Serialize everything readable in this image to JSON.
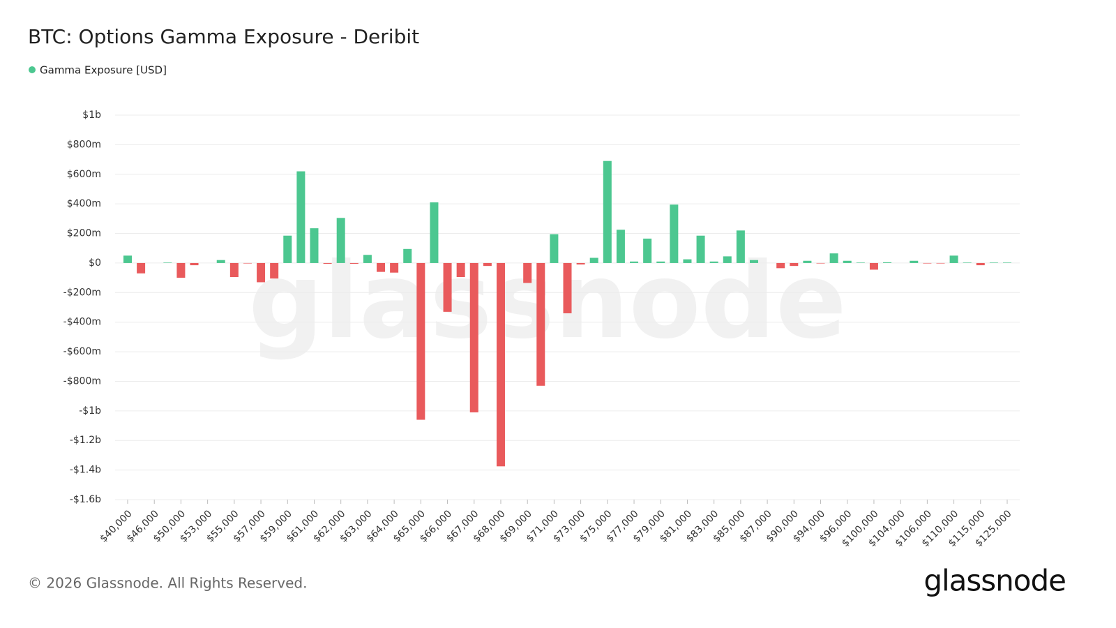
{
  "chart_data": {
    "type": "bar",
    "title": "BTC: Options Gamma Exposure - Deribit",
    "categories": [
      "$40,000",
      null,
      "$46,000",
      null,
      "$50,000",
      null,
      "$53,000",
      null,
      "$55,000",
      null,
      "$57,000",
      null,
      "$59,000",
      null,
      "$61,000",
      null,
      "$62,000",
      null,
      "$63,000",
      null,
      "$64,000",
      null,
      "$65,000",
      null,
      "$66,000",
      null,
      "$67,000",
      null,
      "$68,000",
      null,
      "$69,000",
      null,
      "$71,000",
      null,
      "$73,000",
      null,
      "$75,000",
      null,
      "$77,000",
      null,
      "$79,000",
      null,
      "$81,000",
      null,
      "$83,000",
      null,
      "$85,000",
      null,
      "$87,000",
      null,
      "$90,000",
      null,
      "$94,000",
      null,
      "$96,000",
      null,
      "$100,000",
      null,
      "$104,000",
      null,
      "$106,000",
      null,
      "$110,000",
      null,
      "$115,000",
      null,
      "$125,000"
    ],
    "series": [
      {
        "name": "Gamma Exposure [USD]",
        "color": "#4cc790",
        "negative_color": "#e95a5c",
        "values": [
          50000000,
          -70000000,
          0,
          3000000,
          -100000000,
          -15000000,
          0,
          20000000,
          -95000000,
          -3000000,
          -130000000,
          -105000000,
          185000000,
          620000000,
          235000000,
          -5000000,
          305000000,
          -5000000,
          55000000,
          -60000000,
          -65000000,
          95000000,
          -1060000000,
          410000000,
          -330000000,
          -95000000,
          -1010000000,
          -20000000,
          -1375000000,
          0,
          -135000000,
          -830000000,
          195000000,
          -340000000,
          -10000000,
          35000000,
          690000000,
          225000000,
          10000000,
          165000000,
          10000000,
          395000000,
          25000000,
          185000000,
          10000000,
          45000000,
          220000000,
          20000000,
          0,
          -35000000,
          -20000000,
          15000000,
          -3000000,
          65000000,
          15000000,
          3000000,
          -45000000,
          5000000,
          0,
          15000000,
          -3000000,
          -3000000,
          50000000,
          3000000,
          -15000000,
          3000000,
          3000000
        ]
      }
    ],
    "ylim": [
      -1600000000,
      1000000000
    ],
    "yticks": [
      {
        "value": 1000000000,
        "label": "$1b"
      },
      {
        "value": 800000000,
        "label": "$800m"
      },
      {
        "value": 600000000,
        "label": "$600m"
      },
      {
        "value": 400000000,
        "label": "$400m"
      },
      {
        "value": 200000000,
        "label": "$200m"
      },
      {
        "value": 0,
        "label": "$0"
      },
      {
        "value": -200000000,
        "label": "-$200m"
      },
      {
        "value": -400000000,
        "label": "-$400m"
      },
      {
        "value": -600000000,
        "label": "-$600m"
      },
      {
        "value": -800000000,
        "label": "-$800m"
      },
      {
        "value": -1000000000,
        "label": "-$1b"
      },
      {
        "value": -1200000000,
        "label": "-$1.2b"
      },
      {
        "value": -1400000000,
        "label": "-$1.4b"
      },
      {
        "value": -1600000000,
        "label": "-$1.6b"
      }
    ],
    "grid": true,
    "watermark": "glassnode"
  },
  "footer": {
    "copyright": "© 2026 Glassnode. All Rights Reserved.",
    "logo": "glassnode"
  }
}
